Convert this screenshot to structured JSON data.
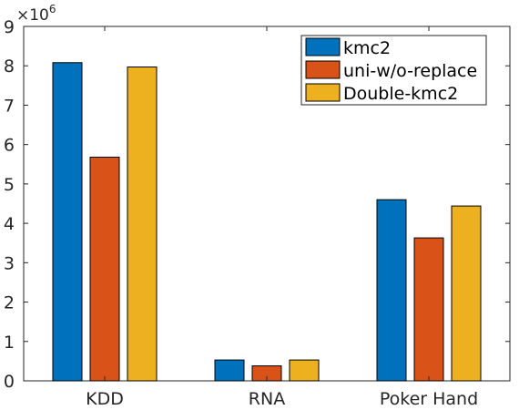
{
  "chart_data": {
    "type": "bar",
    "categories": [
      "KDD",
      "RNA",
      "Poker Hand"
    ],
    "series": [
      {
        "name": "kmc2",
        "color": "#0072BD",
        "values": [
          8.08,
          0.53,
          4.6
        ]
      },
      {
        "name": "uni-w/o-replace",
        "color": "#D95319",
        "values": [
          5.68,
          0.38,
          3.63
        ]
      },
      {
        "name": "Double-kmc2",
        "color": "#EDB120",
        "values": [
          7.97,
          0.53,
          4.44
        ]
      }
    ],
    "ylim": [
      0,
      9
    ],
    "yticks": [
      "0",
      "1",
      "2",
      "3",
      "4",
      "5",
      "6",
      "7",
      "8",
      "9"
    ],
    "y_multiplier": {
      "base": "×10",
      "exponent": "6"
    },
    "grid": false,
    "legend_position": "top-right",
    "title": "",
    "xlabel": "",
    "ylabel": ""
  }
}
